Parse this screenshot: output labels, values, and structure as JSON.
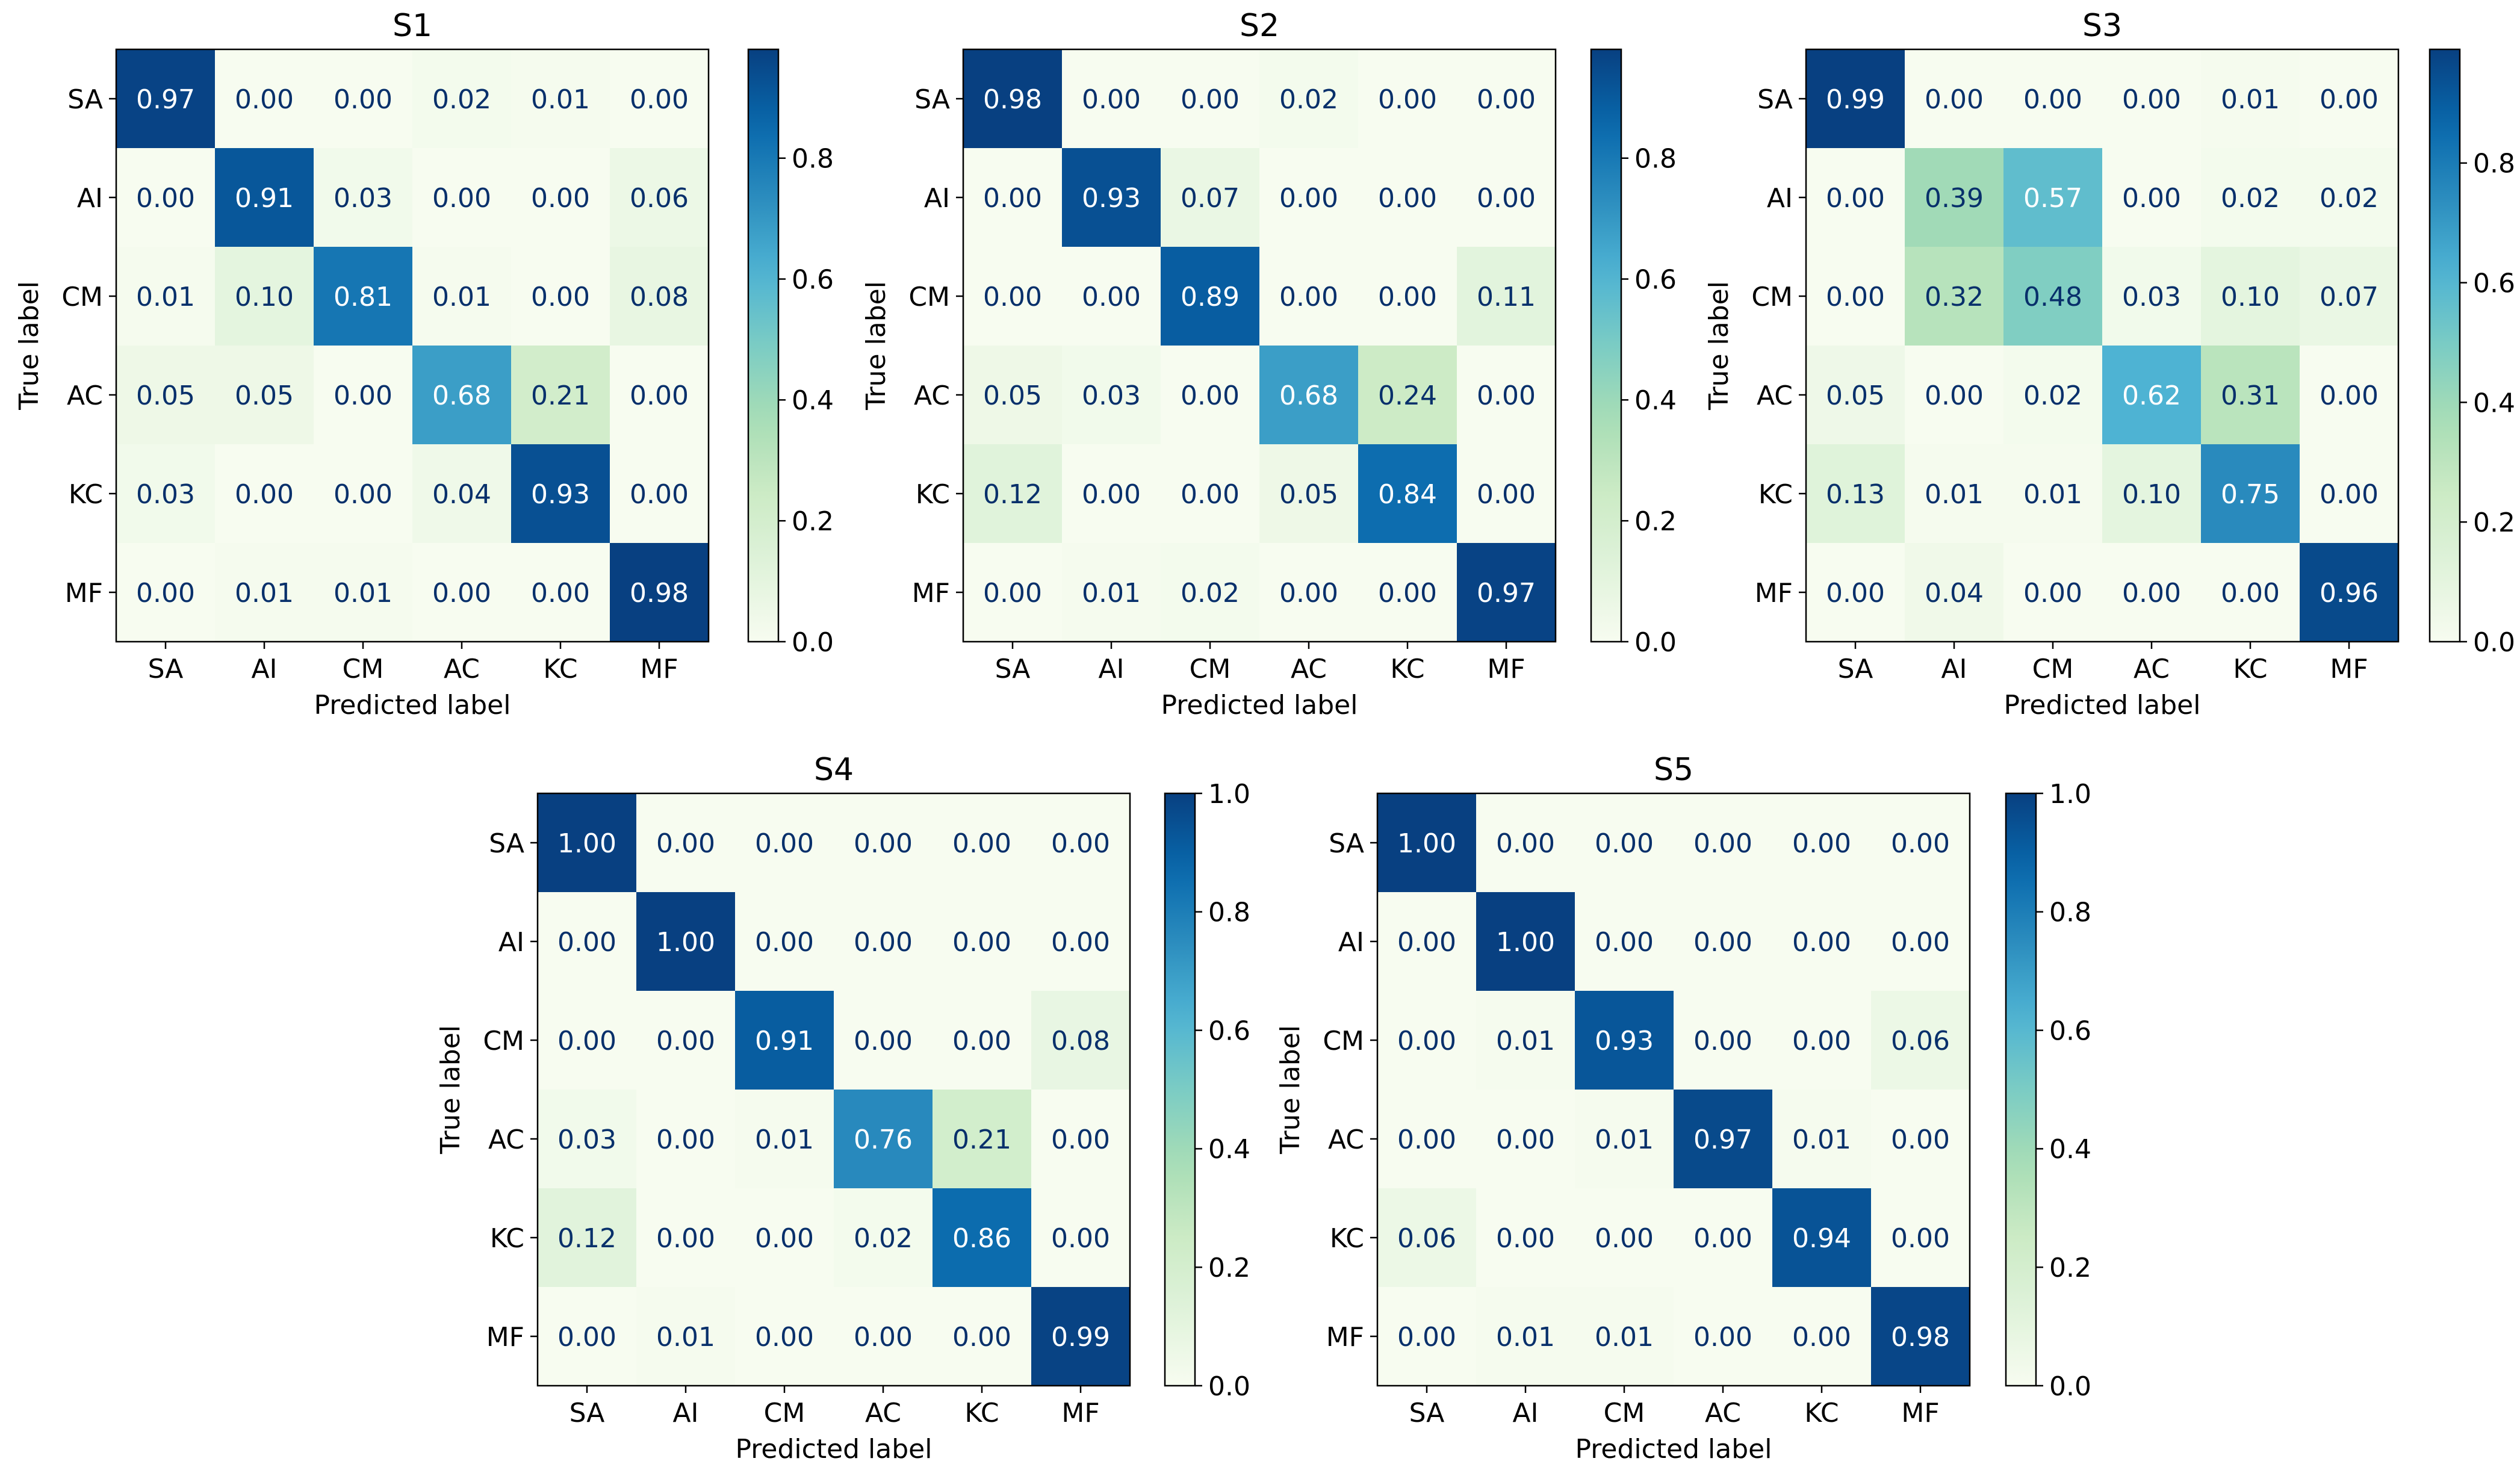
{
  "chart_data": [
    {
      "type": "heatmap",
      "title": "S1",
      "xlabel": "Predicted label",
      "ylabel": "True label",
      "x_categories": [
        "SA",
        "AI",
        "CM",
        "AC",
        "KC",
        "MF"
      ],
      "y_categories": [
        "SA",
        "AI",
        "CM",
        "AC",
        "KC",
        "MF"
      ],
      "values": [
        [
          0.97,
          0.0,
          0.0,
          0.02,
          0.01,
          0.0
        ],
        [
          0.0,
          0.91,
          0.03,
          0.0,
          0.0,
          0.06
        ],
        [
          0.01,
          0.1,
          0.81,
          0.01,
          0.0,
          0.08
        ],
        [
          0.05,
          0.05,
          0.0,
          0.68,
          0.21,
          0.0
        ],
        [
          0.03,
          0.0,
          0.0,
          0.04,
          0.93,
          0.0
        ],
        [
          0.0,
          0.01,
          0.01,
          0.0,
          0.0,
          0.98
        ]
      ],
      "colormap": "GnBu",
      "vmin": 0.0,
      "vmax": 0.98,
      "colorbar_ticks": [
        "0.0",
        "0.2",
        "0.4",
        "0.6",
        "0.8"
      ]
    },
    {
      "type": "heatmap",
      "title": "S2",
      "xlabel": "Predicted label",
      "ylabel": "True label",
      "x_categories": [
        "SA",
        "AI",
        "CM",
        "AC",
        "KC",
        "MF"
      ],
      "y_categories": [
        "SA",
        "AI",
        "CM",
        "AC",
        "KC",
        "MF"
      ],
      "values": [
        [
          0.98,
          0.0,
          0.0,
          0.02,
          0.0,
          0.0
        ],
        [
          0.0,
          0.93,
          0.07,
          0.0,
          0.0,
          0.0
        ],
        [
          0.0,
          0.0,
          0.89,
          0.0,
          0.0,
          0.11
        ],
        [
          0.05,
          0.03,
          0.0,
          0.68,
          0.24,
          0.0
        ],
        [
          0.12,
          0.0,
          0.0,
          0.05,
          0.84,
          0.0
        ],
        [
          0.0,
          0.01,
          0.02,
          0.0,
          0.0,
          0.97
        ]
      ],
      "colormap": "GnBu",
      "vmin": 0.0,
      "vmax": 0.98,
      "colorbar_ticks": [
        "0.0",
        "0.2",
        "0.4",
        "0.6",
        "0.8"
      ]
    },
    {
      "type": "heatmap",
      "title": "S3",
      "xlabel": "Predicted label",
      "ylabel": "True label",
      "x_categories": [
        "SA",
        "AI",
        "CM",
        "AC",
        "KC",
        "MF"
      ],
      "y_categories": [
        "SA",
        "AI",
        "CM",
        "AC",
        "KC",
        "MF"
      ],
      "values": [
        [
          0.99,
          0.0,
          0.0,
          0.0,
          0.01,
          0.0
        ],
        [
          0.0,
          0.39,
          0.57,
          0.0,
          0.02,
          0.02
        ],
        [
          0.0,
          0.32,
          0.48,
          0.03,
          0.1,
          0.07
        ],
        [
          0.05,
          0.0,
          0.02,
          0.62,
          0.31,
          0.0
        ],
        [
          0.13,
          0.01,
          0.01,
          0.1,
          0.75,
          0.0
        ],
        [
          0.0,
          0.04,
          0.0,
          0.0,
          0.0,
          0.96
        ]
      ],
      "colormap": "GnBu",
      "vmin": 0.0,
      "vmax": 0.99,
      "colorbar_ticks": [
        "0.0",
        "0.2",
        "0.4",
        "0.6",
        "0.8"
      ]
    },
    {
      "type": "heatmap",
      "title": "S4",
      "xlabel": "Predicted label",
      "ylabel": "True label",
      "x_categories": [
        "SA",
        "AI",
        "CM",
        "AC",
        "KC",
        "MF"
      ],
      "y_categories": [
        "SA",
        "AI",
        "CM",
        "AC",
        "KC",
        "MF"
      ],
      "values": [
        [
          1.0,
          0.0,
          0.0,
          0.0,
          0.0,
          0.0
        ],
        [
          0.0,
          1.0,
          0.0,
          0.0,
          0.0,
          0.0
        ],
        [
          0.0,
          0.0,
          0.91,
          0.0,
          0.0,
          0.08
        ],
        [
          0.03,
          0.0,
          0.01,
          0.76,
          0.21,
          0.0
        ],
        [
          0.12,
          0.0,
          0.0,
          0.02,
          0.86,
          0.0
        ],
        [
          0.0,
          0.01,
          0.0,
          0.0,
          0.0,
          0.99
        ]
      ],
      "colormap": "GnBu",
      "vmin": 0.0,
      "vmax": 1.0,
      "colorbar_ticks": [
        "0.0",
        "0.2",
        "0.4",
        "0.6",
        "0.8",
        "1.0"
      ]
    },
    {
      "type": "heatmap",
      "title": "S5",
      "xlabel": "Predicted label",
      "ylabel": "True label",
      "x_categories": [
        "SA",
        "AI",
        "CM",
        "AC",
        "KC",
        "MF"
      ],
      "y_categories": [
        "SA",
        "AI",
        "CM",
        "AC",
        "KC",
        "MF"
      ],
      "values": [
        [
          1.0,
          0.0,
          0.0,
          0.0,
          0.0,
          0.0
        ],
        [
          0.0,
          1.0,
          0.0,
          0.0,
          0.0,
          0.0
        ],
        [
          0.0,
          0.01,
          0.93,
          0.0,
          0.0,
          0.06
        ],
        [
          0.0,
          0.0,
          0.01,
          0.97,
          0.01,
          0.0
        ],
        [
          0.06,
          0.0,
          0.0,
          0.0,
          0.94,
          0.0
        ],
        [
          0.0,
          0.01,
          0.01,
          0.0,
          0.0,
          0.98
        ]
      ],
      "colormap": "GnBu",
      "vmin": 0.0,
      "vmax": 1.0,
      "colorbar_ticks": [
        "0.0",
        "0.2",
        "0.4",
        "0.6",
        "0.8",
        "1.0"
      ]
    }
  ]
}
